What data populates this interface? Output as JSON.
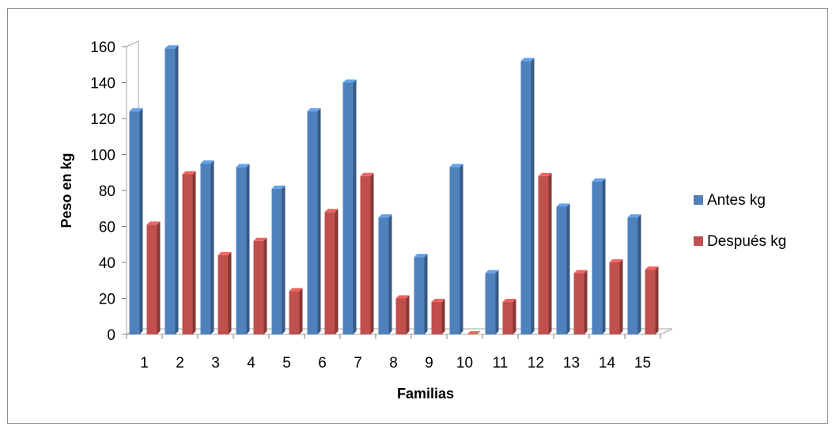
{
  "chart_data": {
    "type": "bar",
    "categories": [
      "1",
      "2",
      "3",
      "4",
      "5",
      "6",
      "7",
      "8",
      "9",
      "10",
      "11",
      "12",
      "13",
      "14",
      "15"
    ],
    "series": [
      {
        "name": "Antes kg",
        "values": [
          124,
          159,
          95,
          93,
          81,
          124,
          140,
          65,
          43,
          93,
          34,
          152,
          71,
          85,
          65
        ],
        "color": "#4f81bd"
      },
      {
        "name": "Después kg",
        "values": [
          61,
          89,
          44,
          52,
          24,
          68,
          88,
          20,
          18,
          0,
          18,
          88,
          34,
          40,
          36
        ],
        "color": "#c0504d"
      }
    ],
    "xlabel": "Familias",
    "ylabel": "Peso en kg",
    "ylim": [
      0,
      160
    ],
    "yticks": [
      0,
      20,
      40,
      60,
      80,
      100,
      120,
      140,
      160
    ],
    "grid": false,
    "legend_position": "right",
    "style": "3d-clustered-column"
  }
}
